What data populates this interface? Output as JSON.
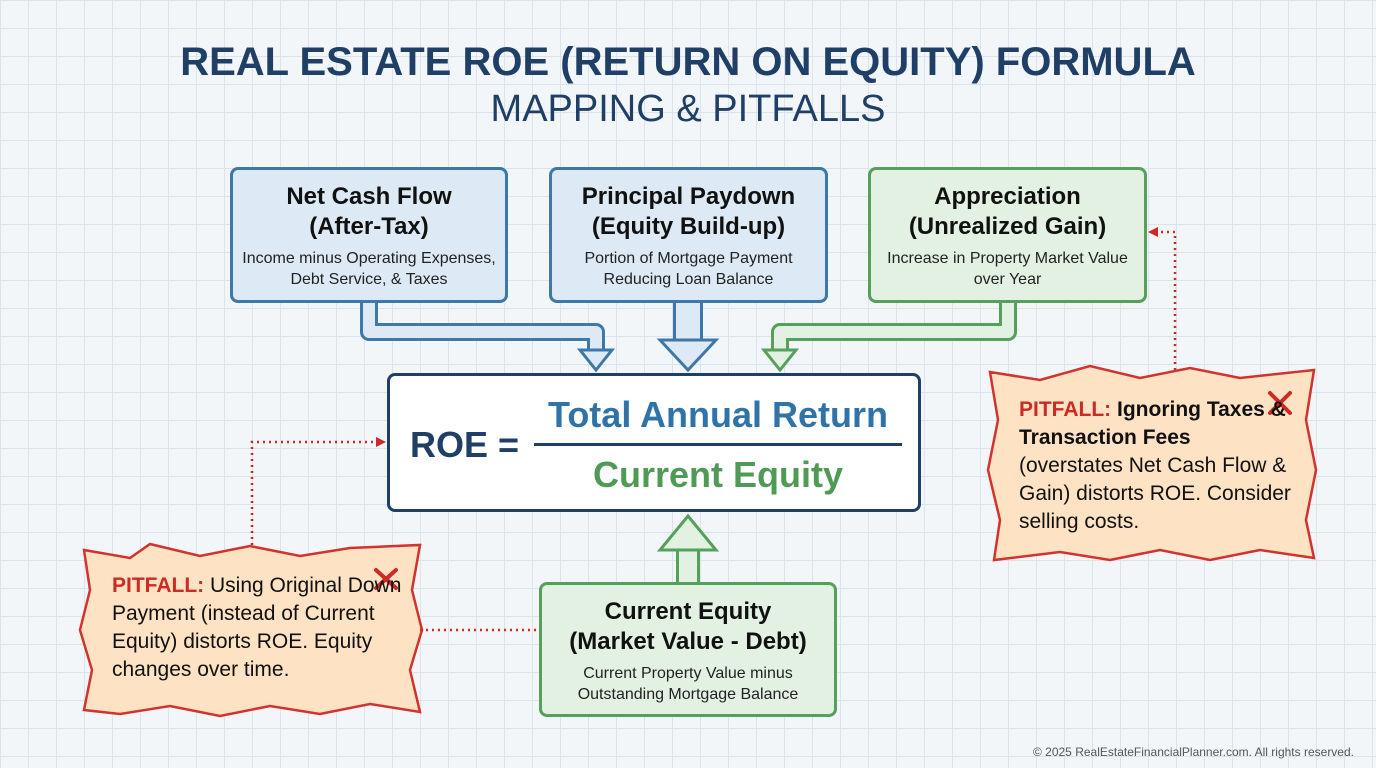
{
  "header": {
    "title": "REAL ESTATE ROE (RETURN ON EQUITY) FORMULA",
    "subtitle": "MAPPING & PITFALLS"
  },
  "components": [
    {
      "title": "Net Cash Flow",
      "subtitle": "(After-Tax)",
      "description": "Income minus Operating Expenses, Debt Service, & Taxes"
    },
    {
      "title": "Principal Paydown",
      "subtitle": "(Equity Build-up)",
      "description": "Portion of Mortgage Payment Reducing Loan Balance"
    },
    {
      "title": "Appreciation",
      "subtitle": "(Unrealized Gain)",
      "description": "Increase in Property Market Value over Year"
    }
  ],
  "formula": {
    "lhs": "ROE =",
    "numerator": "Total Annual Return",
    "denominator": "Current Equity"
  },
  "equity_box": {
    "title": "Current Equity",
    "subtitle": "(Market Value - Debt)",
    "description": "Current Property Value minus Outstanding Mortgage Balance"
  },
  "pitfalls": [
    {
      "label": "PITFALL:",
      "emphasis": "",
      "text": "Using Original Down Payment (instead of Current Equity) distorts ROE. Equity changes over time."
    },
    {
      "label": "PITFALL:",
      "emphasis": "Ignoring Taxes & Transaction Fees",
      "text": "(overstates Net Cash Flow & Gain) distorts ROE. Consider selling costs."
    }
  ],
  "footer": "© 2025 RealEstateFinancialPlanner.com. All rights reserved."
}
